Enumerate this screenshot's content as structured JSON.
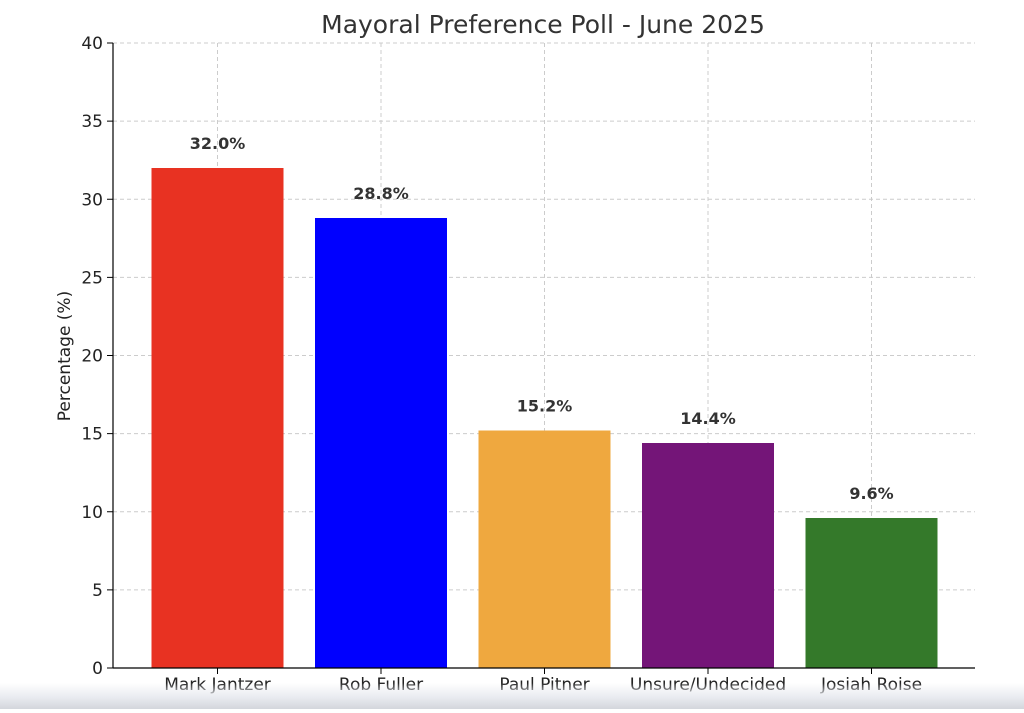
{
  "chart_data": {
    "type": "bar",
    "title": "Mayoral Preference Poll - June 2025",
    "xlabel": "",
    "ylabel": "Percentage (%)",
    "ylim": [
      0,
      40
    ],
    "yticks": [
      0,
      5,
      10,
      15,
      20,
      25,
      30,
      35,
      40
    ],
    "grid": true,
    "categories": [
      "Mark Jantzer",
      "Rob Fuller",
      "Paul Pitner",
      "Unsure/Undecided",
      "Josiah Roise"
    ],
    "values": [
      32.0,
      28.8,
      15.2,
      14.4,
      9.6
    ],
    "data_labels": [
      "32.0%",
      "28.8%",
      "15.2%",
      "14.4%",
      "9.6%"
    ],
    "colors": [
      "#e83222",
      "#0000ff",
      "#efa83f",
      "#741578",
      "#34792a"
    ]
  }
}
